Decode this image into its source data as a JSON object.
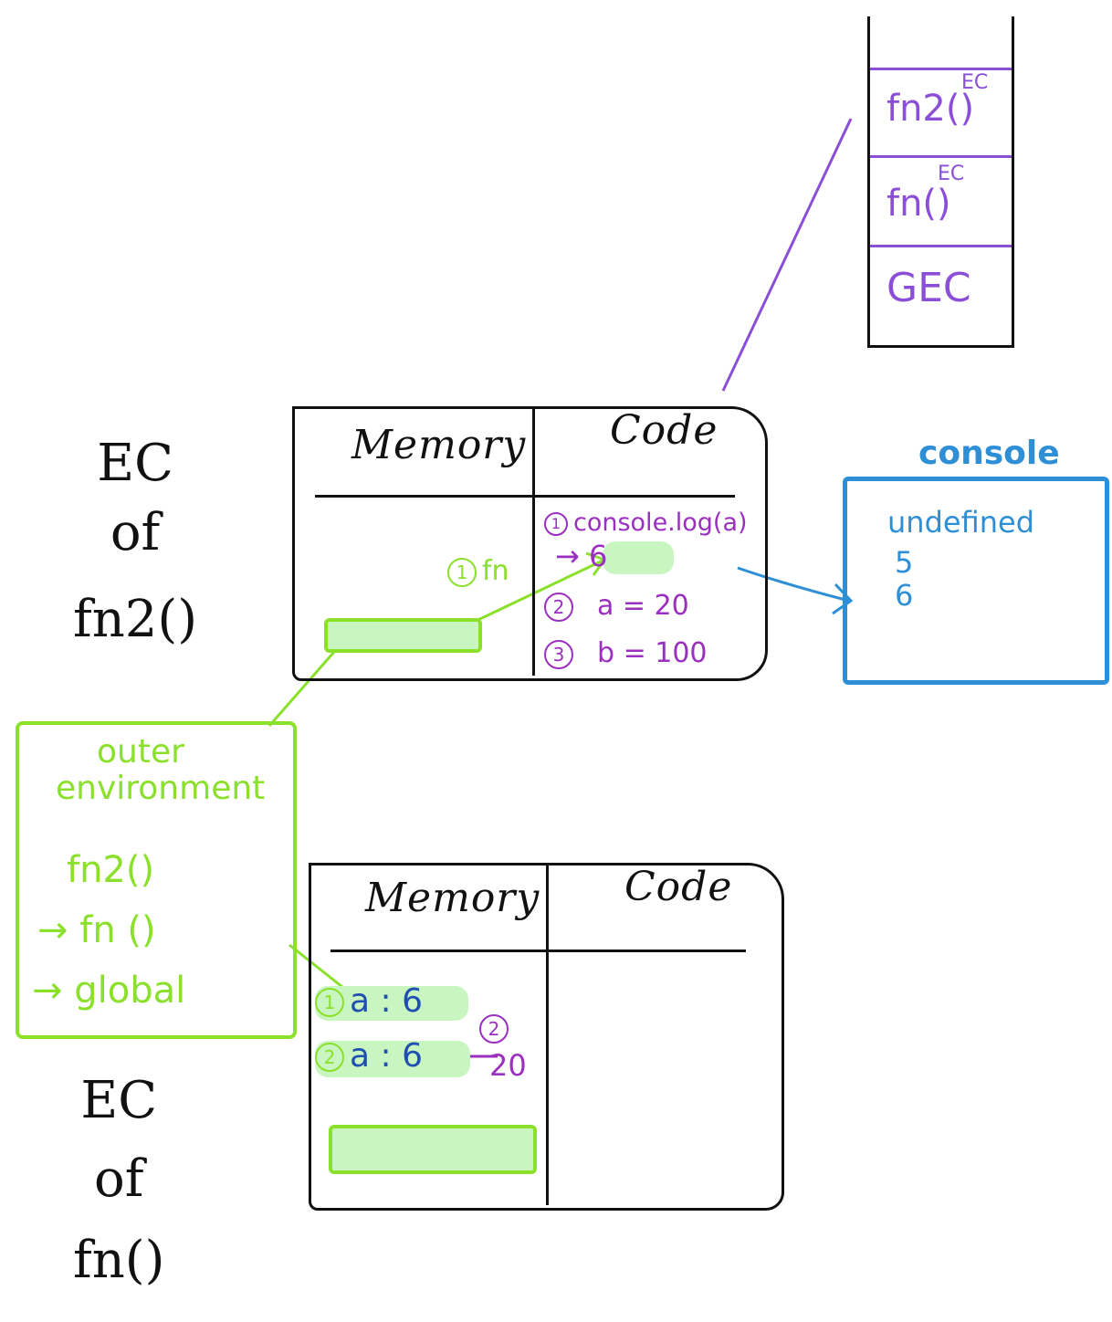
{
  "call_stack": {
    "frames": [
      {
        "label": "fn2()",
        "sup": "EC"
      },
      {
        "label": "fn()",
        "sup": "EC"
      },
      {
        "label": "GEC",
        "sup": ""
      }
    ]
  },
  "fn2_ec": {
    "side_label": [
      "EC",
      "of",
      "fn2()"
    ],
    "memory_header": "Memory",
    "code_header": "Code",
    "memory_note_num": "1",
    "memory_note": "fn",
    "code_lines": [
      {
        "num": "1",
        "text": "console.log(a)"
      },
      {
        "num": "",
        "text": "→ 6"
      },
      {
        "num": "2",
        "text": "a = 20"
      },
      {
        "num": "3",
        "text": "b = 100"
      }
    ]
  },
  "console": {
    "title": "console",
    "lines": [
      "undefined",
      "5",
      "6"
    ]
  },
  "outer_environment": {
    "title_line1": "outer",
    "title_line2": "environment",
    "items": [
      "fn2()",
      "→ fn ()",
      "→ global"
    ]
  },
  "fn_ec": {
    "side_label": [
      "EC",
      "of",
      "fn()"
    ],
    "memory_header": "Memory",
    "code_header": "Code",
    "memory_lines": [
      {
        "num": "1",
        "text": "a : 6"
      },
      {
        "num": "2",
        "text": "a : 6",
        "update_num": "2",
        "update_value": "20"
      }
    ]
  },
  "colors": {
    "stack": "#8a4fd6",
    "code": "#9b2fbf",
    "console": "#2e8fd6",
    "memory": "#1f4fb0",
    "outer": "#8ae02a",
    "highlight": "#c9f5c0"
  }
}
